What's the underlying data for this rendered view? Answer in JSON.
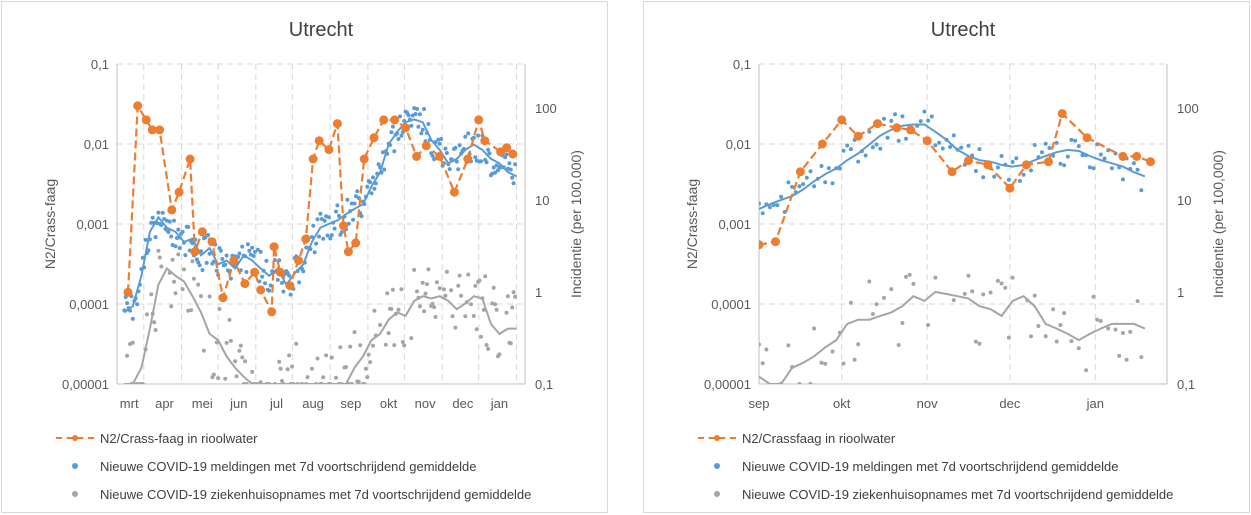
{
  "chart_data": [
    {
      "type": "line",
      "title": "Utrecht",
      "ylabel": "N2/Crass-faag",
      "y2label": "Incidentie (per 100,000)",
      "y_scale": "log",
      "y2_scale": "log",
      "ylim": [
        1e-05,
        0.1
      ],
      "y2lim": [
        0.1,
        300
      ],
      "y_ticks": [
        "0,1",
        "0,01",
        "0,001",
        "0,0001",
        "0,00001"
      ],
      "y2_ticks": [
        "100",
        "10",
        "1",
        "0,1"
      ],
      "x_ticks": [
        "mrt",
        "apr",
        "mei",
        "jun",
        "jul",
        "aug",
        "sep",
        "okt",
        "nov",
        "dec",
        "jan"
      ],
      "grid": true,
      "legend_position": "bottom",
      "legend": [
        "N2/Crass-faag in rioolwater",
        "Nieuwe COVID-19 meldingen met 7d voortschrijdend gemiddelde",
        "Nieuwe COVID-19 ziekenhuisopnames met 7d voortschrijdend gemiddelde"
      ],
      "series": [
        {
          "name": "N2/Crass-faag in rioolwater",
          "axis": "left",
          "color": "#ED7D31",
          "style": "dashed-line-markers",
          "x": [
            "2020-03-04",
            "2020-03-12",
            "2020-03-19",
            "2020-03-24",
            "2020-03-30",
            "2020-04-09",
            "2020-04-15",
            "2020-04-24",
            "2020-04-28",
            "2020-05-04",
            "2020-05-12",
            "2020-05-21",
            "2020-05-30",
            "2020-06-08",
            "2020-06-16",
            "2020-06-21",
            "2020-06-30",
            "2020-07-02",
            "2020-07-07",
            "2020-07-15",
            "2020-07-22",
            "2020-07-28",
            "2020-08-03",
            "2020-08-08",
            "2020-08-16",
            "2020-08-23",
            "2020-08-28",
            "2020-09-01",
            "2020-09-07",
            "2020-09-14",
            "2020-09-22",
            "2020-09-30",
            "2020-10-09",
            "2020-10-18",
            "2020-10-27",
            "2020-11-04",
            "2020-11-15",
            "2020-11-27",
            "2020-12-08",
            "2020-12-17",
            "2020-12-22",
            "2021-01-04",
            "2021-01-09",
            "2021-01-14"
          ],
          "values": [
            0.00014,
            0.03,
            0.02,
            0.015,
            0.015,
            0.0015,
            0.0025,
            0.0065,
            0.00045,
            0.0008,
            0.0006,
            0.00012,
            0.00035,
            0.00018,
            0.00025,
            0.00015,
            8e-05,
            0.00052,
            0.00025,
            0.00017,
            0.00035,
            0.00065,
            0.0065,
            0.011,
            0.0085,
            0.018,
            0.00095,
            0.00045,
            0.00058,
            0.0065,
            0.012,
            0.02,
            0.02,
            0.016,
            0.007,
            0.0095,
            0.007,
            0.0025,
            0.0065,
            0.02,
            0.011,
            0.008,
            0.009,
            0.0075
          ]
        },
        {
          "name": "Nieuwe COVID-19 meldingen met 7d voortschrijdend gemiddelde",
          "axis": "right",
          "color": "#5B9BD5",
          "style": "dots-with-moving-average",
          "x": [
            "2020-03-01",
            "2020-03-08",
            "2020-03-15",
            "2020-03-22",
            "2020-03-29",
            "2020-04-05",
            "2020-04-12",
            "2020-04-19",
            "2020-04-26",
            "2020-05-03",
            "2020-05-10",
            "2020-05-17",
            "2020-05-24",
            "2020-05-31",
            "2020-06-07",
            "2020-06-14",
            "2020-06-21",
            "2020-06-28",
            "2020-07-05",
            "2020-07-12",
            "2020-07-19",
            "2020-07-26",
            "2020-08-02",
            "2020-08-09",
            "2020-08-16",
            "2020-08-23",
            "2020-08-30",
            "2020-09-06",
            "2020-09-13",
            "2020-09-20",
            "2020-09-27",
            "2020-10-04",
            "2020-10-11",
            "2020-10-18",
            "2020-10-25",
            "2020-11-01",
            "2020-11-08",
            "2020-11-15",
            "2020-11-22",
            "2020-11-29",
            "2020-12-06",
            "2020-12-13",
            "2020-12-20",
            "2020-12-27",
            "2021-01-03",
            "2021-01-10",
            "2021-01-17"
          ],
          "values": [
            0.6,
            0.7,
            1.5,
            4.5,
            6.5,
            5,
            4.5,
            3.5,
            3.8,
            2.5,
            3,
            2,
            2.2,
            1.8,
            2.5,
            2.2,
            1.8,
            1.5,
            1.8,
            1.2,
            1.6,
            2,
            3.5,
            5,
            5.5,
            6,
            7,
            8,
            9,
            14,
            20,
            40,
            55,
            70,
            75,
            70,
            45,
            35,
            25,
            28,
            35,
            40,
            35,
            28,
            25,
            20,
            18
          ]
        },
        {
          "name": "Nieuwe COVID-19 ziekenhuisopnames met 7d voortschrijdend gemiddelde",
          "axis": "right",
          "color": "#A5A5A5",
          "style": "dots-with-moving-average",
          "x": [
            "2020-03-01",
            "2020-03-08",
            "2020-03-15",
            "2020-03-22",
            "2020-03-29",
            "2020-04-05",
            "2020-04-12",
            "2020-04-19",
            "2020-04-26",
            "2020-05-03",
            "2020-05-10",
            "2020-05-17",
            "2020-05-24",
            "2020-05-31",
            "2020-06-07",
            "2020-06-14",
            "2020-06-21",
            "2020-06-28",
            "2020-07-05",
            "2020-07-12",
            "2020-07-19",
            "2020-07-26",
            "2020-08-02",
            "2020-08-09",
            "2020-08-16",
            "2020-08-23",
            "2020-08-30",
            "2020-09-06",
            "2020-09-13",
            "2020-09-20",
            "2020-09-27",
            "2020-10-04",
            "2020-10-11",
            "2020-10-18",
            "2020-10-25",
            "2020-11-01",
            "2020-11-08",
            "2020-11-15",
            "2020-11-22",
            "2020-11-29",
            "2020-12-06",
            "2020-12-13",
            "2020-12-20",
            "2020-12-27",
            "2021-01-03",
            "2021-01-10",
            "2021-01-17"
          ],
          "values": [
            0.1,
            0.1,
            0.15,
            0.4,
            1.2,
            1.8,
            1.5,
            1.3,
            0.9,
            0.6,
            0.35,
            0.3,
            0.2,
            0.15,
            0.12,
            0.1,
            0.1,
            0.1,
            0.1,
            0.1,
            0.1,
            0.1,
            0.1,
            0.1,
            0.1,
            0.1,
            0.1,
            0.15,
            0.2,
            0.3,
            0.35,
            0.5,
            0.6,
            0.55,
            0.8,
            0.9,
            0.85,
            0.9,
            0.8,
            0.65,
            0.75,
            0.9,
            0.85,
            0.45,
            0.35,
            0.4,
            0.4
          ]
        }
      ]
    },
    {
      "type": "line",
      "title": "Utrecht",
      "ylabel": "N2/Crass-faag",
      "y2label": "Incidentie (per 100,000)",
      "y_scale": "log",
      "y2_scale": "log",
      "ylim": [
        1e-05,
        0.1
      ],
      "y2lim": [
        0.1,
        300
      ],
      "y_ticks": [
        "0,1",
        "0,01",
        "0,001",
        "0,0001",
        "0,00001"
      ],
      "y2_ticks": [
        "100",
        "10",
        "1",
        "0,1"
      ],
      "x_ticks": [
        "sep",
        "okt",
        "nov",
        "dec",
        "jan"
      ],
      "grid": true,
      "legend_position": "bottom",
      "legend": [
        "N2/Crassfaag in rioolwater",
        "Nieuwe COVID-19 meldingen met 7d voortschrijdend gemiddelde",
        "Nieuwe COVID-19 ziekenhuisopnames met 7d voortschrijdend gemiddelde"
      ],
      "series": [
        {
          "name": "N2/Crassfaag in rioolwater",
          "axis": "left",
          "color": "#ED7D31",
          "style": "dashed-line-markers",
          "x": [
            "2020-09-01",
            "2020-09-07",
            "2020-09-16",
            "2020-09-24",
            "2020-10-01",
            "2020-10-07",
            "2020-10-14",
            "2020-10-21",
            "2020-10-26",
            "2020-11-01",
            "2020-11-10",
            "2020-11-16",
            "2020-11-23",
            "2020-12-01",
            "2020-12-07",
            "2020-12-15",
            "2020-12-20",
            "2020-12-29",
            "2021-01-11",
            "2021-01-16",
            "2021-01-21"
          ],
          "values": [
            0.00055,
            0.0006,
            0.0045,
            0.01,
            0.02,
            0.0125,
            0.018,
            0.016,
            0.015,
            0.011,
            0.0045,
            0.0062,
            0.0055,
            0.0028,
            0.0055,
            0.006,
            0.024,
            0.012,
            0.007,
            0.007,
            0.006
          ]
        },
        {
          "name": "Nieuwe COVID-19 meldingen met 7d voortschrijdend gemiddelde",
          "axis": "right",
          "color": "#5B9BD5",
          "style": "dots-with-moving-average",
          "x": [
            "2020-09-01",
            "2020-09-05",
            "2020-09-09",
            "2020-09-13",
            "2020-09-17",
            "2020-09-21",
            "2020-09-25",
            "2020-09-29",
            "2020-10-03",
            "2020-10-07",
            "2020-10-11",
            "2020-10-15",
            "2020-10-19",
            "2020-10-23",
            "2020-10-27",
            "2020-10-31",
            "2020-11-04",
            "2020-11-08",
            "2020-11-12",
            "2020-11-16",
            "2020-11-20",
            "2020-11-24",
            "2020-11-28",
            "2020-12-02",
            "2020-12-06",
            "2020-12-10",
            "2020-12-14",
            "2020-12-18",
            "2020-12-22",
            "2020-12-26",
            "2020-12-30",
            "2021-01-03",
            "2021-01-07",
            "2021-01-11",
            "2021-01-15",
            "2021-01-19"
          ],
          "values": [
            8,
            9,
            10,
            11,
            13,
            16,
            19,
            22,
            27,
            32,
            40,
            50,
            58,
            64,
            66,
            66,
            55,
            45,
            35,
            30,
            27,
            26,
            24,
            23,
            24,
            27,
            30,
            33,
            35,
            34,
            30,
            27,
            25,
            23,
            20,
            18
          ]
        },
        {
          "name": "Nieuwe COVID-19 ziekenhuisopnames met 7d voortschrijdend gemiddelde",
          "axis": "right",
          "color": "#A5A5A5",
          "style": "dots-with-moving-average",
          "x": [
            "2020-09-01",
            "2020-09-05",
            "2020-09-09",
            "2020-09-13",
            "2020-09-17",
            "2020-09-21",
            "2020-09-25",
            "2020-09-29",
            "2020-10-03",
            "2020-10-07",
            "2020-10-11",
            "2020-10-15",
            "2020-10-19",
            "2020-10-23",
            "2020-10-27",
            "2020-10-31",
            "2020-11-04",
            "2020-11-08",
            "2020-11-12",
            "2020-11-16",
            "2020-11-20",
            "2020-11-24",
            "2020-11-28",
            "2020-12-02",
            "2020-12-06",
            "2020-12-10",
            "2020-12-14",
            "2020-12-18",
            "2020-12-22",
            "2020-12-26",
            "2020-12-30",
            "2021-01-03",
            "2021-01-07",
            "2021-01-11",
            "2021-01-15",
            "2021-01-19"
          ],
          "values": [
            0.12,
            0.1,
            0.1,
            0.15,
            0.17,
            0.2,
            0.25,
            0.3,
            0.45,
            0.5,
            0.5,
            0.55,
            0.6,
            0.7,
            0.9,
            0.8,
            1.0,
            0.95,
            0.9,
            0.85,
            0.7,
            0.65,
            0.55,
            0.8,
            0.9,
            0.7,
            0.45,
            0.4,
            0.35,
            0.3,
            0.35,
            0.4,
            0.45,
            0.45,
            0.45,
            0.4
          ]
        }
      ]
    }
  ]
}
